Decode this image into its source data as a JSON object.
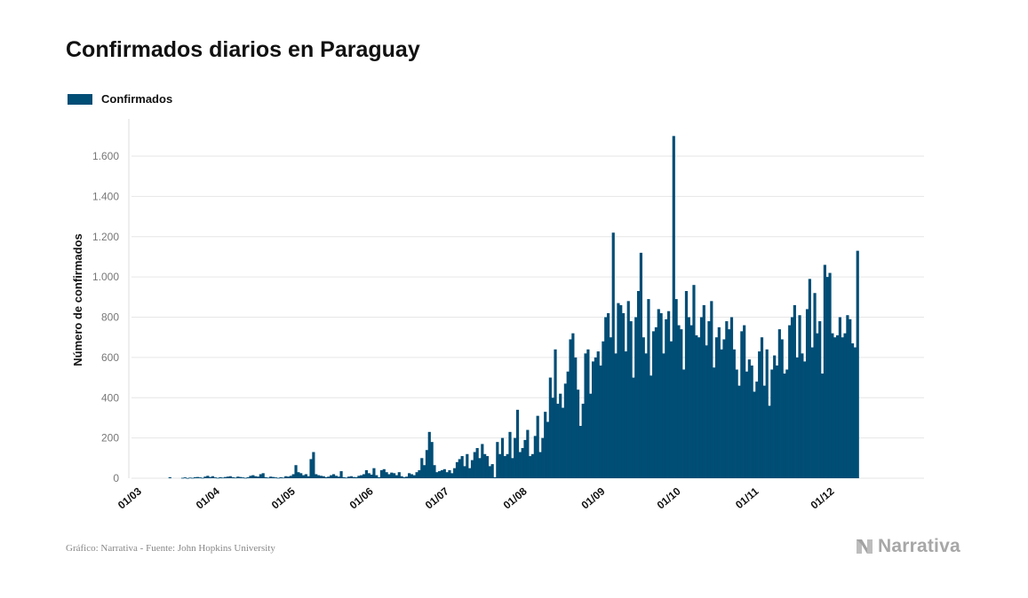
{
  "chart_data": {
    "type": "bar",
    "title": "Confirmados diarios en Paraguay",
    "ylabel": "Número de confirmados",
    "xlabel": "",
    "ylim": [
      0,
      1700
    ],
    "yticks": [
      0,
      200,
      400,
      600,
      800,
      1000,
      1200,
      1400,
      1600
    ],
    "ytick_labels": [
      "0",
      "200",
      "400",
      "600",
      "800",
      "1.000",
      "1.200",
      "1.400",
      "1.600"
    ],
    "xtick_labels": [
      "01/03",
      "01/04",
      "01/05",
      "01/06",
      "01/07",
      "01/08",
      "01/09",
      "01/10",
      "01/11",
      "01/12"
    ],
    "xtick_day_index": [
      0,
      31,
      61,
      92,
      122,
      153,
      184,
      214,
      245,
      275
    ],
    "grid": true,
    "legend_position": "top-left",
    "series": [
      {
        "name": "Confirmados",
        "color": "#004d75",
        "values": [
          0,
          0,
          0,
          0,
          0,
          0,
          0,
          0,
          0,
          0,
          0,
          0,
          0,
          0,
          5,
          0,
          0,
          0,
          0,
          2,
          4,
          1,
          3,
          2,
          5,
          6,
          4,
          2,
          8,
          12,
          6,
          10,
          4,
          2,
          5,
          3,
          6,
          8,
          10,
          5,
          3,
          8,
          6,
          4,
          2,
          5,
          12,
          15,
          10,
          8,
          20,
          25,
          5,
          3,
          8,
          6,
          4,
          2,
          5,
          3,
          10,
          8,
          12,
          20,
          65,
          30,
          25,
          15,
          20,
          10,
          95,
          130,
          20,
          15,
          12,
          10,
          5,
          8,
          15,
          20,
          12,
          8,
          35,
          5,
          3,
          8,
          10,
          6,
          5,
          12,
          15,
          20,
          40,
          25,
          18,
          50,
          15,
          5,
          40,
          45,
          30,
          20,
          28,
          25,
          15,
          30,
          10,
          5,
          8,
          25,
          20,
          15,
          30,
          40,
          100,
          65,
          140,
          230,
          180,
          65,
          30,
          35,
          40,
          45,
          30,
          40,
          25,
          50,
          80,
          95,
          110,
          60,
          120,
          50,
          90,
          130,
          150,
          100,
          170,
          120,
          110,
          60,
          70,
          5,
          180,
          120,
          200,
          110,
          120,
          230,
          100,
          200,
          340,
          130,
          150,
          190,
          240,
          110,
          120,
          210,
          310,
          130,
          200,
          330,
          280,
          500,
          400,
          640,
          370,
          420,
          350,
          470,
          530,
          690,
          720,
          600,
          440,
          260,
          370,
          620,
          640,
          420,
          580,
          600,
          630,
          560,
          680,
          800,
          820,
          700,
          1220,
          620,
          870,
          860,
          820,
          630,
          880,
          780,
          500,
          800,
          930,
          1120,
          700,
          620,
          890,
          510,
          730,
          750,
          840,
          820,
          620,
          790,
          830,
          680,
          1700,
          890,
          760,
          740,
          540,
          930,
          800,
          760,
          960,
          710,
          700,
          800,
          860,
          660,
          780,
          880,
          550,
          700,
          750,
          640,
          690,
          780,
          740,
          800,
          640,
          540,
          460,
          730,
          760,
          530,
          590,
          560,
          430,
          480,
          630,
          700,
          460,
          640,
          360,
          540,
          610,
          560,
          740,
          690,
          520,
          540,
          760,
          800,
          860,
          600,
          810,
          620,
          580,
          840,
          990,
          650,
          920,
          720,
          780,
          520,
          1060,
          1000,
          1020,
          720,
          700,
          710,
          800,
          700,
          720,
          810,
          790,
          670,
          650,
          1130
        ]
      }
    ]
  },
  "legend": {
    "label": "Confirmados"
  },
  "footer": {
    "source": "Gráfico: Narrativa - Fuente: John Hopkins University",
    "logo_text": "Narrativa"
  }
}
